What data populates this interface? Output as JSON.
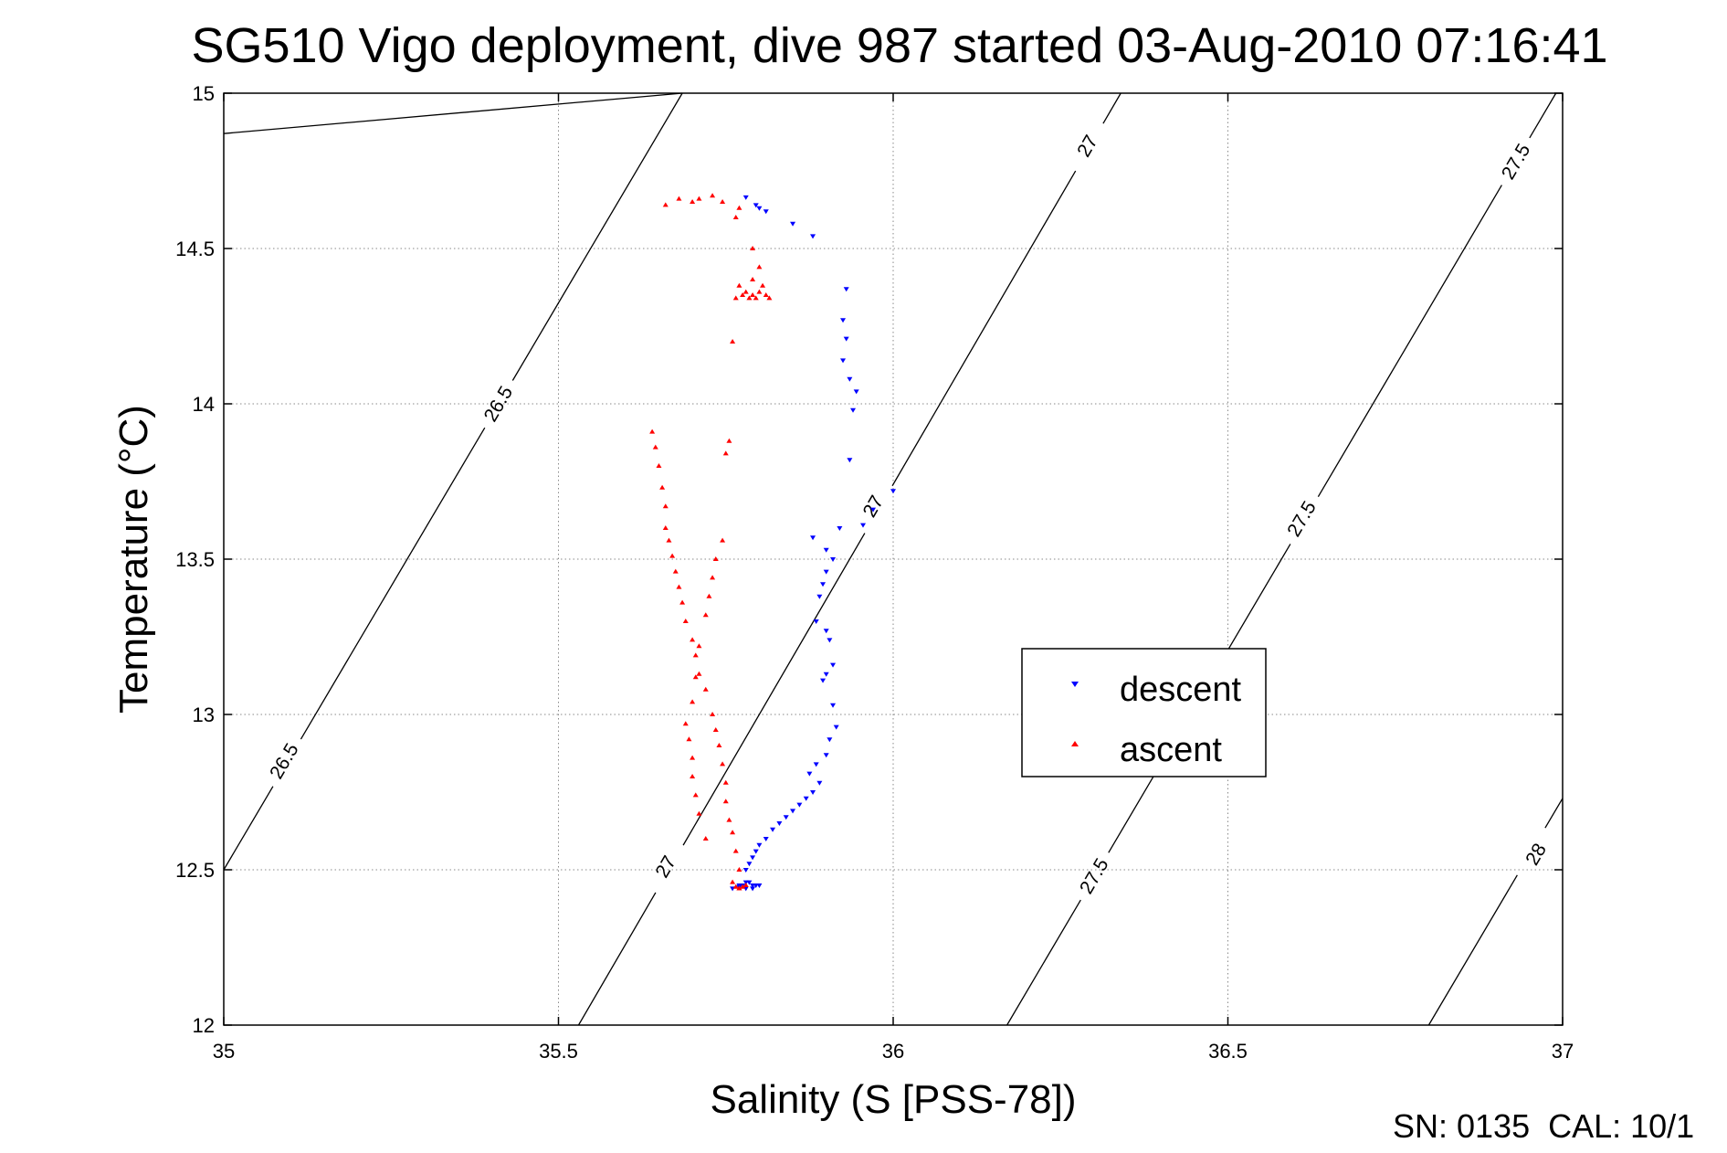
{
  "chart_data": {
    "type": "scatter",
    "title": "SG510 Vigo deployment, dive 987 started 03-Aug-2010 07:16:41",
    "xlabel": "Salinity (S [PSS-78])",
    "ylabel": "Temperature (°C)",
    "xlim": [
      35,
      37
    ],
    "ylim": [
      12,
      15
    ],
    "xticks": [
      35,
      35.5,
      36,
      36.5,
      37
    ],
    "yticks": [
      12,
      12.5,
      13,
      13.5,
      14,
      14.5,
      15
    ],
    "xtick_labels": [
      "35",
      "35.5",
      "36",
      "36.5",
      "37"
    ],
    "ytick_labels": [
      "12",
      "12.5",
      "13",
      "13.5",
      "14",
      "14.5",
      "15"
    ],
    "grid": true,
    "legend_position": "center-right",
    "footer": "SN: 0135  CAL: 10/1",
    "contours": [
      {
        "label": "26.5",
        "points": [
          [
            35.0,
            14.87
          ],
          [
            35.685,
            15.0
          ]
        ],
        "label_positions": []
      },
      {
        "label": "26.5",
        "points": [
          [
            35.0,
            12.5
          ],
          [
            35.685,
            15.0
          ]
        ],
        "label_positions": [
          [
            35.41,
            14.0
          ],
          [
            35.09,
            12.85
          ]
        ]
      },
      {
        "label": "27",
        "points": [
          [
            35.53,
            12.0
          ],
          [
            36.34,
            15.0
          ]
        ],
        "label_positions": [
          [
            36.29,
            14.83
          ],
          [
            35.97,
            13.67
          ],
          [
            35.66,
            12.51
          ]
        ]
      },
      {
        "label": "27.5",
        "points": [
          [
            36.17,
            12.0
          ],
          [
            36.99,
            15.0
          ]
        ],
        "label_positions": [
          [
            36.93,
            14.78
          ],
          [
            36.61,
            13.63
          ],
          [
            36.3,
            12.48
          ]
        ]
      },
      {
        "label": "28",
        "points": [
          [
            36.8,
            12.0
          ],
          [
            37.0,
            12.73
          ]
        ],
        "label_positions": [
          [
            36.96,
            12.55
          ]
        ]
      }
    ],
    "series": [
      {
        "name": "descent",
        "color": "#0000ff",
        "marker": "triangle-down",
        "x": [
          35.78,
          35.795,
          35.8,
          35.81,
          35.85,
          35.88,
          35.93,
          35.925,
          35.93,
          35.925,
          35.935,
          35.945,
          35.94,
          35.935,
          36.0,
          35.97,
          35.955,
          35.92,
          35.88,
          35.9,
          35.91,
          35.9,
          35.895,
          35.89,
          35.885,
          35.9,
          35.905,
          35.91,
          35.9,
          35.895,
          35.91,
          35.915,
          35.905,
          35.9,
          35.885,
          35.875,
          35.89,
          35.88,
          35.87,
          35.86,
          35.85,
          35.84,
          35.83,
          35.82,
          35.81,
          35.8,
          35.795,
          35.79,
          35.785,
          35.78,
          35.78,
          35.785,
          35.79,
          35.77,
          35.775,
          35.78,
          35.79,
          35.795,
          35.8,
          35.76,
          35.77
        ],
        "y": [
          14.665,
          14.64,
          14.63,
          14.62,
          14.58,
          14.54,
          14.37,
          14.27,
          14.21,
          14.14,
          14.08,
          14.04,
          13.98,
          13.82,
          13.72,
          13.66,
          13.61,
          13.6,
          13.57,
          13.53,
          13.5,
          13.46,
          13.42,
          13.38,
          13.3,
          13.27,
          13.24,
          13.16,
          13.13,
          13.11,
          13.03,
          12.96,
          12.92,
          12.87,
          12.84,
          12.81,
          12.78,
          12.75,
          12.73,
          12.71,
          12.69,
          12.67,
          12.65,
          12.63,
          12.6,
          12.58,
          12.56,
          12.54,
          12.52,
          12.5,
          12.46,
          12.46,
          12.45,
          12.45,
          12.45,
          12.44,
          12.44,
          12.45,
          12.45,
          12.44,
          12.445
        ]
      },
      {
        "name": "ascent",
        "color": "#ff0000",
        "marker": "triangle-up",
        "x": [
          35.77,
          35.775,
          35.78,
          35.77,
          35.765,
          35.76,
          35.755,
          35.75,
          35.75,
          35.745,
          35.74,
          35.735,
          35.73,
          35.72,
          35.71,
          35.705,
          35.7,
          35.69,
          35.685,
          35.68,
          35.675,
          35.67,
          35.665,
          35.66,
          35.66,
          35.655,
          35.65,
          35.645,
          35.64,
          35.76,
          35.765,
          35.77,
          35.72,
          35.71,
          35.705,
          35.7,
          35.7,
          35.695,
          35.69,
          35.7,
          35.705,
          35.71,
          35.72,
          35.725,
          35.73,
          35.735,
          35.745,
          35.75,
          35.755,
          35.76,
          35.765,
          35.77,
          35.775,
          35.78,
          35.785,
          35.79,
          35.795,
          35.8,
          35.805,
          35.81,
          35.815,
          35.79,
          35.8,
          35.79,
          35.66,
          35.68,
          35.7,
          35.71,
          35.73,
          35.745,
          35.77,
          35.765
        ],
        "y": [
          12.44,
          12.445,
          12.45,
          12.5,
          12.56,
          12.62,
          12.66,
          12.72,
          12.78,
          12.84,
          12.9,
          12.95,
          13.0,
          13.08,
          13.13,
          13.19,
          13.24,
          13.3,
          13.36,
          13.41,
          13.46,
          13.51,
          13.56,
          13.6,
          13.67,
          13.73,
          13.8,
          13.86,
          13.91,
          12.46,
          12.445,
          12.44,
          12.6,
          12.68,
          12.74,
          12.8,
          12.86,
          12.92,
          12.97,
          13.04,
          13.12,
          13.22,
          13.32,
          13.38,
          13.44,
          13.5,
          13.56,
          13.84,
          13.88,
          14.2,
          14.34,
          14.38,
          14.35,
          14.36,
          14.34,
          14.35,
          14.34,
          14.36,
          14.38,
          14.35,
          14.34,
          14.4,
          14.44,
          14.5,
          14.64,
          14.66,
          14.65,
          14.66,
          14.67,
          14.65,
          14.63,
          14.6
        ]
      }
    ]
  }
}
